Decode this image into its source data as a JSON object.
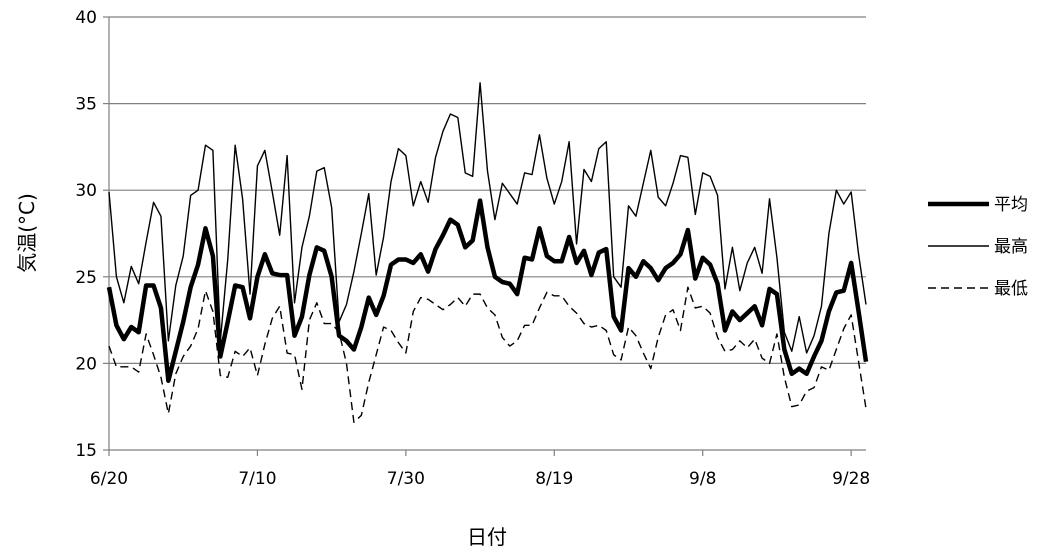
{
  "chart_data": {
    "type": "line",
    "xlabel": "日付",
    "ylabel": "気温(°C)",
    "ylim": [
      15,
      40
    ],
    "yticks": [
      15,
      20,
      25,
      30,
      35,
      40
    ],
    "x_tick_labels": [
      "6/20",
      "7/10",
      "7/30",
      "8/19",
      "9/8",
      "9/28"
    ],
    "x_range": [
      "6/20",
      "9/29"
    ],
    "grid": "horizontal",
    "legend_position": "right",
    "series": [
      {
        "name": "平均",
        "style": "thick-solid",
        "color": "#000000",
        "values": [
          24.4,
          22.2,
          21.4,
          22.1,
          21.8,
          24.5,
          24.5,
          23.2,
          19.0,
          20.7,
          22.4,
          24.4,
          25.7,
          27.8,
          26.2,
          20.4,
          22.4,
          24.5,
          24.4,
          22.6,
          25.0,
          26.3,
          25.2,
          25.1,
          25.1,
          21.6,
          22.7,
          25.1,
          26.7,
          26.5,
          25.0,
          21.6,
          21.3,
          20.8,
          22.1,
          23.8,
          22.8,
          23.9,
          25.7,
          26.0,
          26.0,
          25.8,
          26.3,
          25.3,
          26.6,
          27.4,
          28.3,
          28.0,
          26.7,
          27.1,
          29.4,
          26.7,
          25.0,
          24.7,
          24.6,
          24.0,
          26.1,
          26.0,
          27.8,
          26.2,
          25.9,
          25.9,
          27.3,
          25.8,
          26.5,
          25.1,
          26.4,
          26.6,
          22.7,
          21.9,
          25.5,
          25.0,
          25.9,
          25.5,
          24.8,
          25.5,
          25.8,
          26.3,
          27.7,
          24.9,
          26.1,
          25.7,
          24.6,
          21.9,
          23.0,
          22.5,
          22.9,
          23.3,
          22.2,
          24.3,
          24.0,
          20.8,
          19.4,
          19.7,
          19.4,
          20.4,
          21.3,
          23.0,
          24.1,
          24.2,
          25.8,
          23.0,
          20.1
        ]
      },
      {
        "name": "最高",
        "style": "thin-solid",
        "color": "#000000",
        "values": [
          29.9,
          25.0,
          23.5,
          25.6,
          24.6,
          27.0,
          29.3,
          28.5,
          21.3,
          24.5,
          26.2,
          29.7,
          30.0,
          32.6,
          32.3,
          21.3,
          26.0,
          32.6,
          29.5,
          24.0,
          31.4,
          32.3,
          29.9,
          27.4,
          32.0,
          23.5,
          26.7,
          28.5,
          31.1,
          31.3,
          29.0,
          22.4,
          23.4,
          25.3,
          27.5,
          29.8,
          25.1,
          27.3,
          30.5,
          32.4,
          32.0,
          29.1,
          30.5,
          29.3,
          31.9,
          33.4,
          34.4,
          34.2,
          31.0,
          30.8,
          36.2,
          31.1,
          28.3,
          30.4,
          29.8,
          29.2,
          31.0,
          30.9,
          33.2,
          30.7,
          29.2,
          30.5,
          32.8,
          26.9,
          31.2,
          30.5,
          32.4,
          32.8,
          25.0,
          24.4,
          29.1,
          28.5,
          30.4,
          32.3,
          29.6,
          29.1,
          30.4,
          32.0,
          31.9,
          28.6,
          31.0,
          30.8,
          29.7,
          24.3,
          26.7,
          24.2,
          25.8,
          26.7,
          25.2,
          29.5,
          26.1,
          21.8,
          20.7,
          22.7,
          20.6,
          21.6,
          23.3,
          27.5,
          30.0,
          29.2,
          29.9,
          26.3,
          23.4
        ]
      },
      {
        "name": "最低",
        "style": "dashed",
        "color": "#000000",
        "values": [
          21.0,
          19.8,
          19.8,
          19.8,
          19.5,
          21.7,
          20.5,
          19.2,
          17.1,
          19.4,
          20.4,
          21.0,
          22.0,
          24.2,
          23.0,
          19.3,
          19.2,
          20.7,
          20.4,
          20.9,
          19.3,
          21.1,
          22.6,
          23.3,
          20.6,
          20.5,
          18.5,
          22.5,
          23.5,
          22.3,
          22.3,
          21.8,
          20.0,
          16.6,
          17.0,
          18.9,
          20.5,
          22.1,
          21.9,
          21.2,
          20.6,
          23.0,
          23.8,
          23.7,
          23.4,
          23.1,
          23.4,
          23.8,
          23.3,
          24.0,
          24.0,
          23.2,
          22.8,
          21.5,
          21.0,
          21.3,
          22.2,
          22.2,
          23.2,
          24.1,
          23.9,
          23.9,
          23.3,
          22.9,
          22.3,
          22.1,
          22.2,
          21.9,
          20.5,
          20.2,
          22.1,
          21.6,
          20.6,
          19.7,
          21.5,
          22.8,
          23.1,
          21.9,
          24.4,
          23.2,
          23.3,
          22.9,
          21.5,
          20.7,
          20.8,
          21.3,
          20.9,
          21.4,
          20.3,
          20.0,
          21.7,
          19.2,
          17.5,
          17.6,
          18.4,
          18.6,
          19.8,
          19.6,
          20.8,
          22.0,
          22.8,
          20.1,
          17.4
        ]
      }
    ]
  }
}
